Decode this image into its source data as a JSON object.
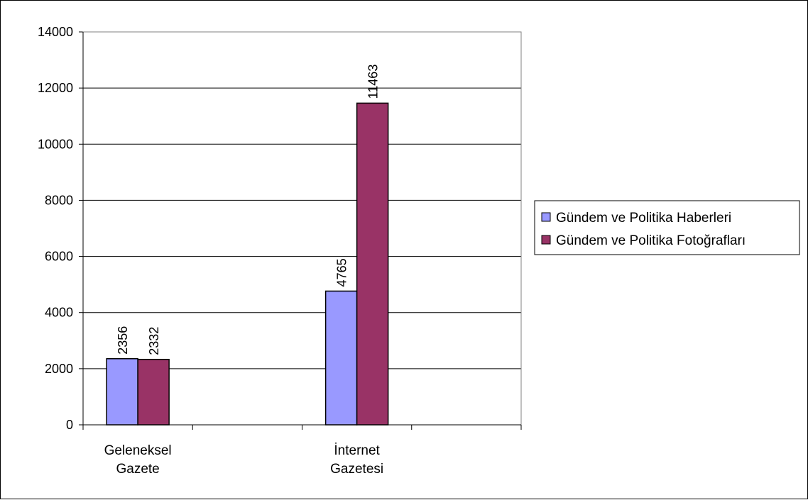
{
  "chart_data": {
    "type": "bar",
    "categories": [
      [
        "Geleneksel",
        "Gazete"
      ],
      [
        "İnternet",
        "Gazetesi"
      ]
    ],
    "series": [
      {
        "name": "Gündem ve Politika Haberleri",
        "values": [
          2356,
          4765
        ],
        "color": "#9999ff"
      },
      {
        "name": "Gündem ve Politika Fotoğrafları",
        "values": [
          2332,
          11463
        ],
        "color": "#993366"
      }
    ],
    "ylim": [
      0,
      14000
    ],
    "yticks": [
      0,
      2000,
      4000,
      6000,
      8000,
      10000,
      12000,
      14000
    ],
    "grid": true,
    "legend": "right",
    "data_labels": true
  }
}
